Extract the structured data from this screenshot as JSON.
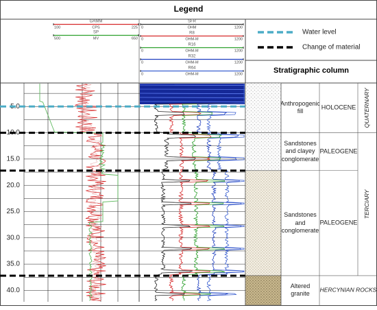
{
  "header": {
    "title": "Legend"
  },
  "log_legend": {
    "left": [
      {
        "name": "GAMM",
        "unit": "CPS",
        "min": 100,
        "max": 225,
        "color": "#d62728"
      },
      {
        "name": "SP",
        "unit": "MV",
        "min": 500,
        "max": 650,
        "color": "#2ca02c"
      }
    ],
    "right": [
      {
        "name": "SFR",
        "unit": "OHM",
        "min": 0,
        "max": 1200,
        "color": "#333333"
      },
      {
        "name": "R8",
        "unit": "OHM-M",
        "min": 0,
        "max": 1200,
        "color": "#d62728"
      },
      {
        "name": "R16",
        "unit": "OHM-M",
        "min": 0,
        "max": 1200,
        "color": "#2ca02c"
      },
      {
        "name": "R32",
        "unit": "OHM-M",
        "min": 0,
        "max": 1200,
        "color": "#1f3fbf"
      },
      {
        "name": "R64",
        "unit": "OHM-M",
        "min": 0,
        "max": 1200,
        "color": "#3a5fd0"
      }
    ]
  },
  "symbols": [
    {
      "label": "Water level",
      "color": "#4bacc6"
    },
    {
      "label": "Change of material",
      "color": "#000000"
    }
  ],
  "strat_title": "Stratigraphic column",
  "depth_labels": [
    "5.0",
    "10.0",
    "15.0",
    "20.0",
    "25.0",
    "30.0",
    "35.0",
    "40.0"
  ],
  "strata": [
    {
      "name": "Anthropogenic fill",
      "age": "HOLOCENE"
    },
    {
      "name": "Sandstones and clayey conglomerate",
      "age": "PALEOGENE"
    },
    {
      "name": "Sandstones and conglomerate",
      "age": "PALEOGENE"
    },
    {
      "name": "Altered granite",
      "age": "HERCYNIAN ROCKS"
    }
  ],
  "eras": [
    "QUATERNARY",
    "TERCIARY"
  ]
}
